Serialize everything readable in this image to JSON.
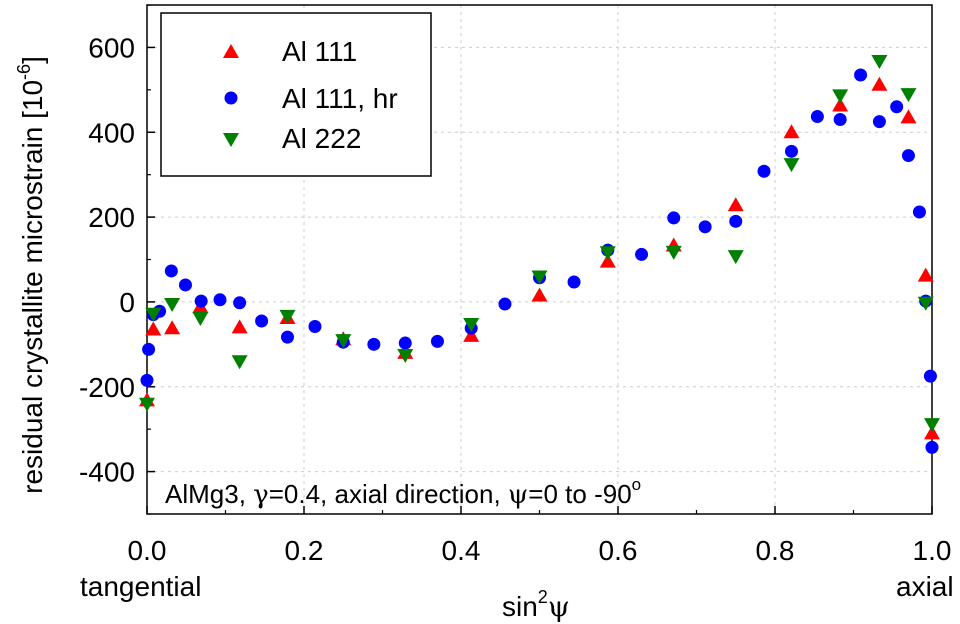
{
  "chart_data": {
    "type": "scatter",
    "xlabel_main": "sin",
    "xlabel_sup": "2",
    "xlabel_var": "ψ",
    "ylabel_main": "residual crystallite microstrain [10",
    "ylabel_sup": "-6",
    "ylabel_end": "]",
    "x_ticks": [
      "0.0",
      "0.2",
      "0.4",
      "0.6",
      "0.8",
      "1.0"
    ],
    "x_tick_values": [
      0,
      0.2,
      0.4,
      0.6,
      0.8,
      1.0
    ],
    "y_ticks": [
      "-400",
      "-200",
      "0",
      "200",
      "400",
      "600"
    ],
    "y_tick_values": [
      -400,
      -200,
      0,
      200,
      400,
      600
    ],
    "xlim": [
      0,
      1.0
    ],
    "ylim": [
      -500,
      700
    ],
    "grid": true,
    "legend_position": "top-left",
    "annotation": {
      "prefix": "AlMg3, ",
      "gamma": "γ",
      "gamma_val": "=0.4, axial direction, ",
      "psi": "ψ",
      "psi_val": "=0 to -90",
      "degree": "o"
    },
    "x_end_labels": {
      "left": "tangential",
      "right": "axial"
    },
    "series": [
      {
        "name": "Al 111",
        "marker": "triangle-up",
        "color": "#ff0000",
        "points": [
          [
            0,
            -232
          ],
          [
            0.008,
            -65
          ],
          [
            0.032,
            -62
          ],
          [
            0.068,
            -12
          ],
          [
            0.118,
            -60
          ],
          [
            0.179,
            -38
          ],
          [
            0.25,
            -88
          ],
          [
            0.329,
            -120
          ],
          [
            0.413,
            -80
          ],
          [
            0.5,
            15
          ],
          [
            0.587,
            95
          ],
          [
            0.671,
            133
          ],
          [
            0.75,
            228
          ],
          [
            0.821,
            400
          ],
          [
            0.883,
            463
          ],
          [
            0.933,
            512
          ],
          [
            0.97,
            435
          ],
          [
            0.992,
            62
          ],
          [
            1.0,
            -310
          ]
        ]
      },
      {
        "name": "Al 111, hr",
        "marker": "circle",
        "color": "#0000ff",
        "points": [
          [
            0,
            -185
          ],
          [
            0.002,
            -112
          ],
          [
            0.008,
            -30
          ],
          [
            0.016,
            -22
          ],
          [
            0.031,
            73
          ],
          [
            0.049,
            40
          ],
          [
            0.069,
            2
          ],
          [
            0.093,
            5
          ],
          [
            0.118,
            -2
          ],
          [
            0.146,
            -45
          ],
          [
            0.179,
            -83
          ],
          [
            0.214,
            -58
          ],
          [
            0.25,
            -95
          ],
          [
            0.289,
            -100
          ],
          [
            0.329,
            -97
          ],
          [
            0.37,
            -93
          ],
          [
            0.413,
            -62
          ],
          [
            0.456,
            -5
          ],
          [
            0.5,
            57
          ],
          [
            0.544,
            47
          ],
          [
            0.587,
            122
          ],
          [
            0.63,
            112
          ],
          [
            0.671,
            198
          ],
          [
            0.711,
            177
          ],
          [
            0.75,
            190
          ],
          [
            0.786,
            308
          ],
          [
            0.821,
            355
          ],
          [
            0.854,
            437
          ],
          [
            0.883,
            430
          ],
          [
            0.909,
            535
          ],
          [
            0.933,
            425
          ],
          [
            0.955,
            460
          ],
          [
            0.97,
            345
          ],
          [
            0.984,
            212
          ],
          [
            0.992,
            2
          ],
          [
            0.998,
            -175
          ],
          [
            1.0,
            -343
          ]
        ]
      },
      {
        "name": "Al 222",
        "marker": "triangle-down",
        "color": "#008000",
        "points": [
          [
            0,
            -240
          ],
          [
            0.008,
            -28
          ],
          [
            0.032,
            -5
          ],
          [
            0.068,
            -38
          ],
          [
            0.118,
            -140
          ],
          [
            0.179,
            -33
          ],
          [
            0.25,
            -90
          ],
          [
            0.329,
            -125
          ],
          [
            0.413,
            -52
          ],
          [
            0.5,
            60
          ],
          [
            0.587,
            117
          ],
          [
            0.671,
            118
          ],
          [
            0.75,
            108
          ],
          [
            0.821,
            325
          ],
          [
            0.883,
            487
          ],
          [
            0.933,
            568
          ],
          [
            0.97,
            490
          ],
          [
            0.992,
            -2
          ],
          [
            1.0,
            -288
          ]
        ]
      }
    ]
  }
}
